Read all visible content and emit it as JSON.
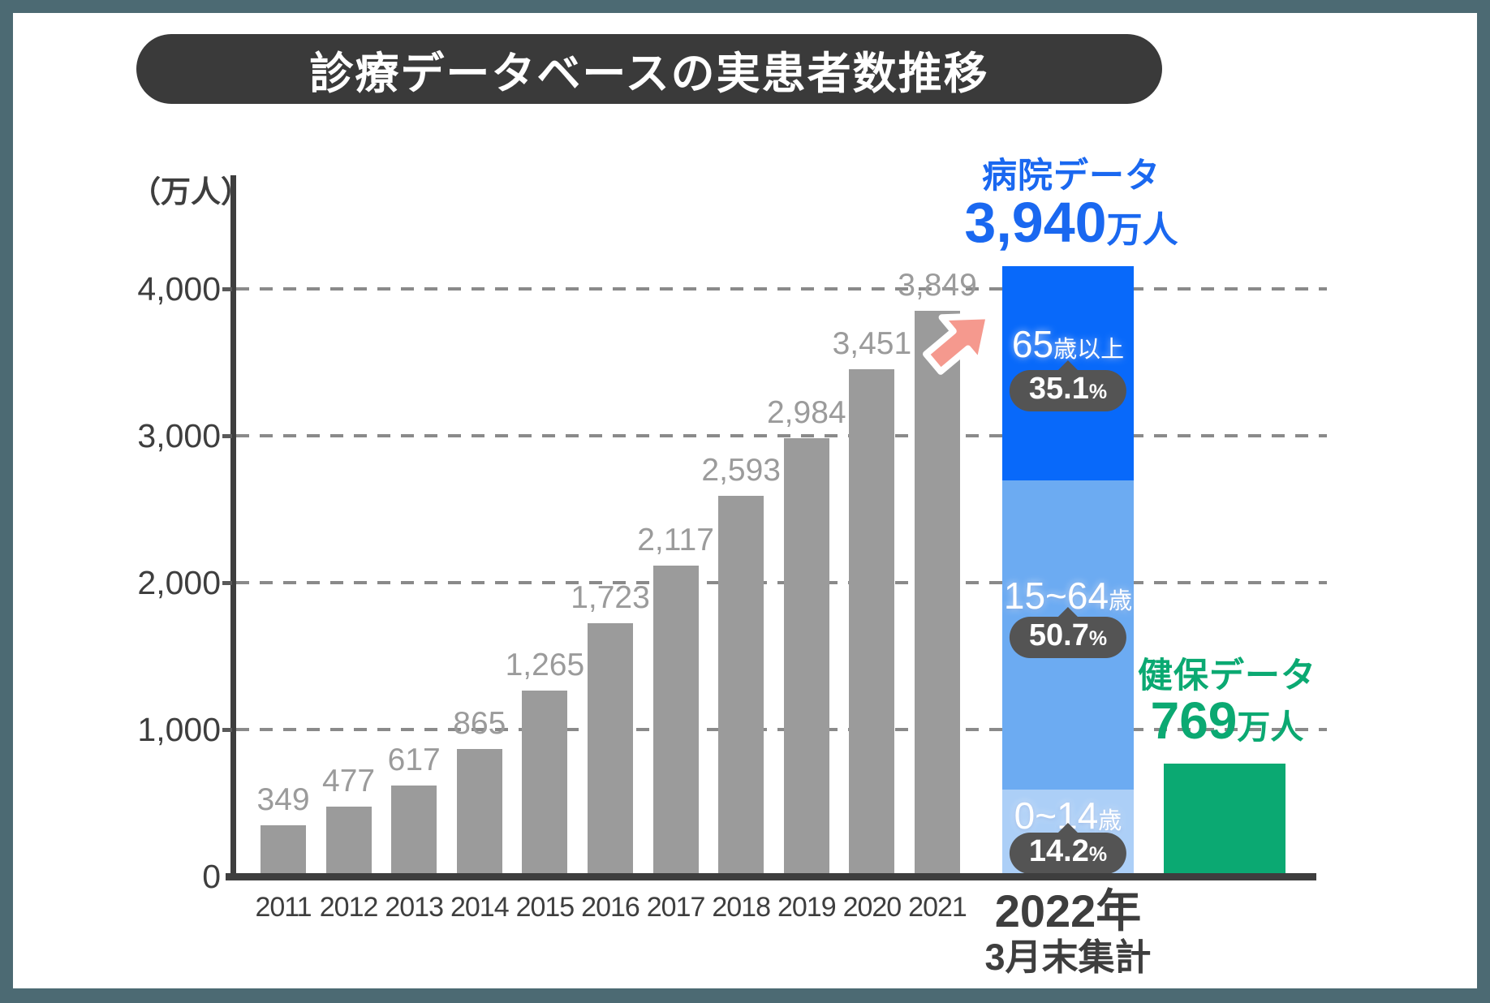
{
  "title": "診療データベースの実患者数推移",
  "chart_data": {
    "type": "bar",
    "title": "診療データベースの実患者数推移",
    "unit_label": "（万人）",
    "ylim": [
      0,
      4000
    ],
    "grid": "dashed horizontal gridlines at 1000/2000/3000/4000",
    "legend_position": "none",
    "bar_color": "#9b9b9b",
    "yticks": [
      {
        "value": 0,
        "label": "0"
      },
      {
        "value": 1000,
        "label": "1,000"
      },
      {
        "value": 2000,
        "label": "2,000"
      },
      {
        "value": 3000,
        "label": "3,000"
      },
      {
        "value": 4000,
        "label": "4,000"
      }
    ],
    "categories": [
      "2011",
      "2012",
      "2013",
      "2014",
      "2015",
      "2016",
      "2017",
      "2018",
      "2019",
      "2020",
      "2021"
    ],
    "values": [
      349,
      477,
      617,
      865,
      1265,
      1723,
      2117,
      2593,
      2984,
      3451,
      3849
    ],
    "value_labels": [
      "349",
      "477",
      "617",
      "865",
      "1,265",
      "1,723",
      "2,117",
      "2,593",
      "2,984",
      "3,451",
      "3,849"
    ],
    "stacked_bar": {
      "category": "2022年",
      "category_sub": "3月末集計",
      "annotation_title": "病院データ",
      "annotation_value": "3,940",
      "annotation_unit": "万人",
      "annotation_color": "#1a68f0",
      "total": 3940,
      "segments": [
        {
          "name_num": "65",
          "name_suffix": "歳以上",
          "pct": 35.1,
          "pct_label": "35.1",
          "pct_symbol": "%",
          "color": "#0869fa"
        },
        {
          "name_num": "15~64",
          "name_suffix": "歳",
          "pct": 50.7,
          "pct_label": "50.7",
          "pct_symbol": "%",
          "color": "#6cabf2"
        },
        {
          "name_num": "0~14",
          "name_suffix": "歳",
          "pct": 14.2,
          "pct_label": "14.2",
          "pct_symbol": "%",
          "color": "#accff7"
        }
      ]
    },
    "green_bar": {
      "annotation_title": "健保データ",
      "annotation_value": "769",
      "annotation_unit": "万人",
      "value": 769,
      "color": "#0ba972"
    }
  }
}
